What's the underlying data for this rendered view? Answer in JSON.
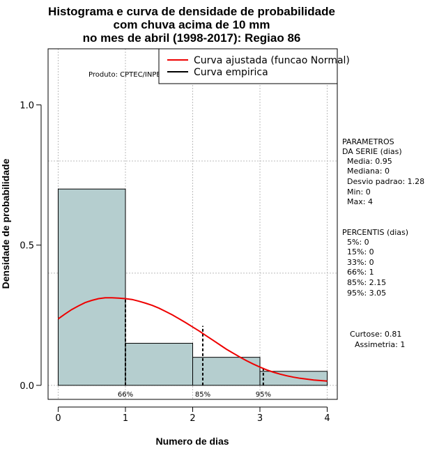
{
  "chart_data": {
    "type": "bar",
    "title_lines": [
      "Histograma e curva de densidade de probabilidade",
      "com chuva acima de 10 mm",
      "no mes de abril (1998-2017): Regiao 86"
    ],
    "xlabel": "Numero de dias",
    "ylabel": "Densidade de probabilidade",
    "xlim": [
      -0.15,
      4.15
    ],
    "ylim": [
      -0.05,
      1.2
    ],
    "x_ticks": [
      0,
      1,
      2,
      3,
      4
    ],
    "x_tick_labels": [
      "0",
      "1",
      "2",
      "3",
      "4"
    ],
    "y_ticks": [
      0.0,
      0.5,
      1.0
    ],
    "y_tick_labels": [
      "0.0",
      "0.5",
      "1.0"
    ],
    "grid": true,
    "grid_x": [
      0,
      1,
      2,
      3,
      4
    ],
    "grid_y": [
      0,
      0.4,
      0.8
    ],
    "bins": [
      {
        "start": 0,
        "end": 1,
        "density": 0.7
      },
      {
        "start": 1,
        "end": 2,
        "density": 0.15
      },
      {
        "start": 2,
        "end": 3,
        "density": 0.1
      },
      {
        "start": 3,
        "end": 4,
        "density": 0.05
      }
    ],
    "bar_color": "#b5cecf",
    "curve_color": "#ee0000",
    "fitted_curve": {
      "name": "Curva ajustada (funcao Normal)",
      "x": [
        0,
        0.1,
        0.2,
        0.3,
        0.4,
        0.5,
        0.6,
        0.7,
        0.8,
        0.9,
        1.0,
        1.1,
        1.2,
        1.3,
        1.4,
        1.5,
        1.6,
        1.7,
        1.8,
        1.9,
        2.0,
        2.1,
        2.2,
        2.3,
        2.4,
        2.5,
        2.6,
        2.7,
        2.8,
        2.9,
        3.0,
        3.1,
        3.2,
        3.3,
        3.4,
        3.5,
        3.6,
        3.7,
        3.8,
        3.9,
        4.0
      ],
      "y": [
        0.237,
        0.254,
        0.27,
        0.283,
        0.295,
        0.303,
        0.309,
        0.312,
        0.312,
        0.311,
        0.309,
        0.306,
        0.3,
        0.293,
        0.285,
        0.275,
        0.263,
        0.251,
        0.237,
        0.223,
        0.208,
        0.193,
        0.177,
        0.161,
        0.145,
        0.129,
        0.115,
        0.101,
        0.088,
        0.076,
        0.065,
        0.055,
        0.047,
        0.04,
        0.034,
        0.029,
        0.025,
        0.022,
        0.019,
        0.017,
        0.015
      ]
    },
    "empirical_curve": {
      "name": "Curva empirica"
    },
    "percentile_markers": [
      {
        "label": "66%",
        "x": 1.0,
        "height": 0.312
      },
      {
        "label": "85%",
        "x": 2.15,
        "height": 0.212
      },
      {
        "label": "95%",
        "x": 3.05,
        "height": 0.064
      }
    ],
    "legend_position": "top-right"
  },
  "product_note": "Produto: CPTEC/INPE",
  "parameters": {
    "heading": [
      "PARAMETROS",
      "DA SERIE (dias)"
    ],
    "lines": [
      "Media: 0.95",
      "Mediana: 0",
      "Desvio padrao: 1.28",
      "Min: 0",
      "Max: 4"
    ]
  },
  "percentiles": {
    "heading": "PERCENTIS (dias)",
    "lines": [
      "5%: 0",
      "15%: 0",
      "33%: 0",
      "66%: 1",
      "85%: 2.15",
      "95%: 3.05"
    ]
  },
  "shape_stats": {
    "lines": [
      "Curtose: 0.81",
      "Assimetria: 1"
    ]
  }
}
